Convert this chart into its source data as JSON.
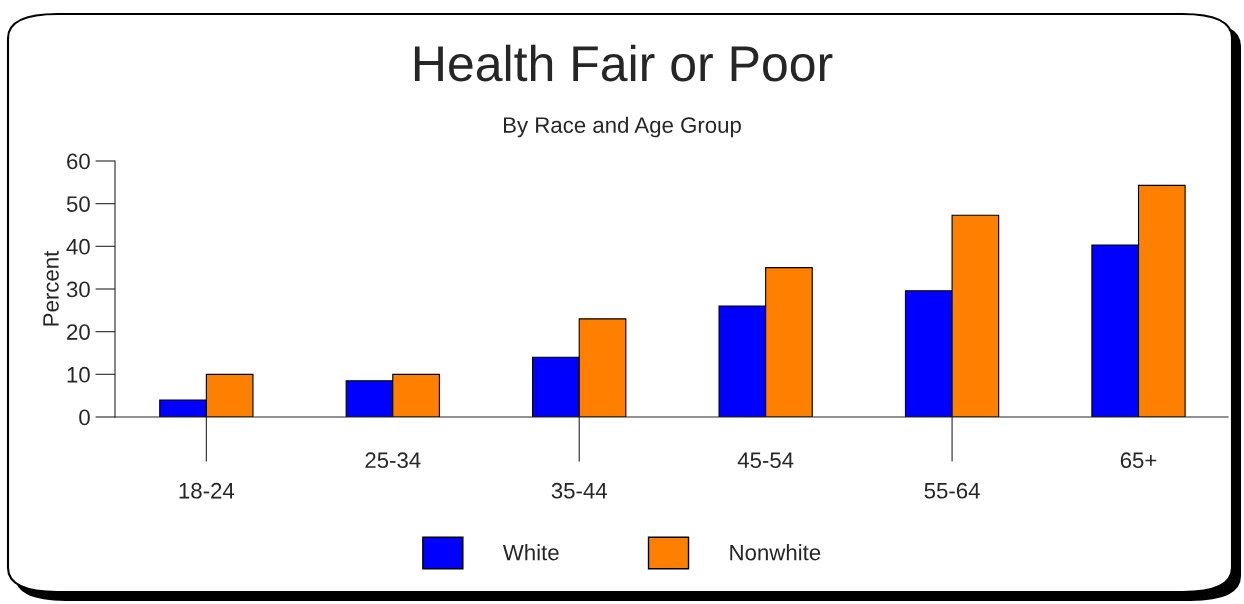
{
  "chart_data": {
    "type": "bar",
    "title": "Health Fair or Poor",
    "subtitle": "By Race and Age Group",
    "ylabel": "Percent",
    "categories": [
      "18-24",
      "25-34",
      "35-44",
      "45-54",
      "55-64",
      "65+"
    ],
    "series": [
      {
        "name": "White",
        "color": "#0000ff",
        "values": [
          4,
          8.5,
          14,
          26,
          29.6,
          40.3
        ]
      },
      {
        "name": "Nonwhite",
        "color": "#ff8000",
        "values": [
          10,
          10,
          23,
          35,
          47.3,
          54.3
        ]
      }
    ],
    "ylim": [
      0,
      60
    ],
    "yticks": [
      0,
      10,
      20,
      30,
      40,
      50,
      60
    ],
    "grid": false,
    "legend": "bottom"
  }
}
